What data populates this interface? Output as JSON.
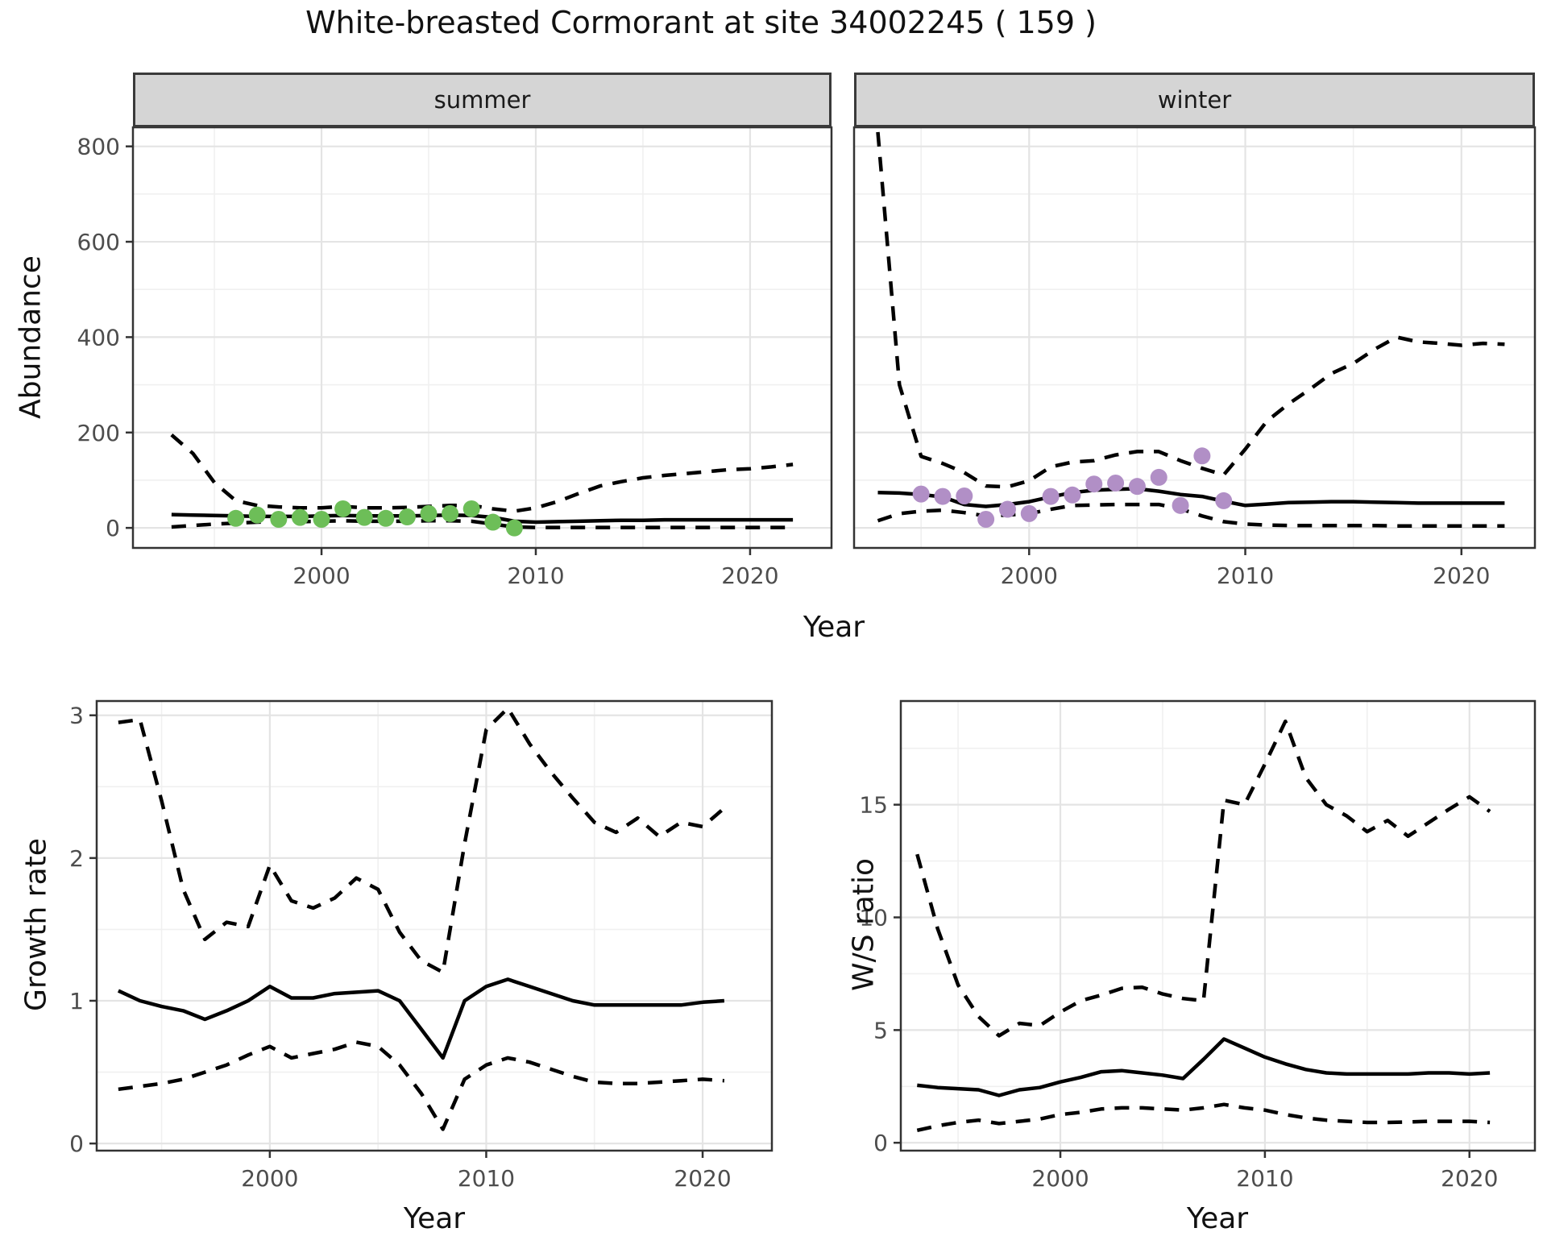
{
  "title": "White-breasted Cormorant at site 34002245 ( 159 )",
  "axis_labels": {
    "abundance": "Abundance",
    "year_top": "Year",
    "year_growth": "Year",
    "year_ws": "Year",
    "growth": "Growth rate",
    "ws": "W/S ratio"
  },
  "colors": {
    "summer_points": "#6dbe58",
    "winter_points": "#b18fc6",
    "line": "#000000",
    "strip_bg": "#d5d5d5",
    "panel_border": "#333333",
    "grid_major": "#e4e4e4",
    "grid_minor": "#f0f0f0",
    "tick_label": "#4d4d4d"
  },
  "chart_data": [
    {
      "key": "summer",
      "type": "line",
      "facet_label": "summer",
      "xlabel": "Year",
      "ylabel": "Abundance",
      "xlim": [
        1991.2,
        2023.8
      ],
      "ylim": [
        -42,
        840
      ],
      "xticks": [
        2000,
        2010,
        2020
      ],
      "yticks": [
        0,
        200,
        400,
        600,
        800
      ],
      "xminor": [
        1995,
        2005,
        2015
      ],
      "yminor": [
        100,
        300,
        500,
        700
      ],
      "grid": true,
      "legend": "none",
      "series": [
        {
          "name": "upper_ci",
          "style": "dashed",
          "x": [
            1993,
            1994,
            1995,
            1996,
            1997,
            1998,
            1999,
            2000,
            2001,
            2002,
            2003,
            2004,
            2005,
            2006,
            2007,
            2008,
            2009,
            2010,
            2011,
            2012,
            2013,
            2014,
            2015,
            2016,
            2017,
            2018,
            2019,
            2020,
            2021,
            2022
          ],
          "y": [
            195,
            156,
            95,
            57,
            47,
            44,
            42,
            42,
            45,
            42,
            42,
            43,
            45,
            47,
            47,
            40,
            35,
            42,
            55,
            72,
            88,
            97,
            105,
            110,
            114,
            118,
            122,
            124,
            128,
            133
          ]
        },
        {
          "name": "fit",
          "style": "solid",
          "x": [
            1993,
            1994,
            1995,
            1996,
            1997,
            1998,
            1999,
            2000,
            2001,
            2002,
            2003,
            2004,
            2005,
            2006,
            2007,
            2008,
            2009,
            2010,
            2011,
            2012,
            2013,
            2014,
            2015,
            2016,
            2017,
            2018,
            2019,
            2020,
            2021,
            2022
          ],
          "y": [
            28,
            27,
            26,
            25,
            24,
            24,
            24,
            25,
            26,
            25,
            25,
            25,
            26,
            27,
            26,
            22,
            14,
            12,
            13,
            14,
            15,
            16,
            16,
            17,
            17,
            17,
            17,
            17,
            17,
            17
          ]
        },
        {
          "name": "lower_ci",
          "style": "dashed",
          "x": [
            1993,
            1994,
            1995,
            1996,
            1997,
            1998,
            1999,
            2000,
            2001,
            2002,
            2003,
            2004,
            2005,
            2006,
            2007,
            2008,
            2009,
            2010,
            2011,
            2012,
            2013,
            2014,
            2015,
            2016,
            2017,
            2018,
            2019,
            2020,
            2021,
            2022
          ],
          "y": [
            2,
            5,
            8,
            10,
            12,
            13,
            13,
            14,
            15,
            14,
            14,
            14,
            15,
            15,
            14,
            8,
            2,
            1,
            1,
            1,
            1,
            1,
            1,
            1,
            1,
            1,
            1,
            1,
            1,
            1
          ]
        },
        {
          "name": "observed",
          "style": "points",
          "color": "#6dbe58",
          "x": [
            1996,
            1997,
            1998,
            1999,
            2000,
            2001,
            2002,
            2003,
            2004,
            2005,
            2006,
            2007,
            2008,
            2009
          ],
          "y": [
            20,
            27,
            18,
            22,
            18,
            40,
            22,
            20,
            23,
            30,
            30,
            40,
            12,
            0
          ]
        }
      ]
    },
    {
      "key": "winter",
      "type": "line",
      "facet_label": "winter",
      "xlabel": "Year",
      "ylabel": "Abundance",
      "xlim": [
        1991.9,
        2023.4
      ],
      "ylim": [
        -42,
        840
      ],
      "xticks": [
        2000,
        2010,
        2020
      ],
      "yticks": [
        0,
        200,
        400,
        600,
        800
      ],
      "xminor": [
        1995,
        2005,
        2015
      ],
      "yminor": [
        100,
        300,
        500,
        700
      ],
      "grid": true,
      "legend": "none",
      "series": [
        {
          "name": "upper_ci",
          "style": "dashed",
          "x": [
            1993,
            1994,
            1995,
            1996,
            1997,
            1998,
            1999,
            2000,
            2001,
            2002,
            2003,
            2004,
            2005,
            2006,
            2007,
            2008,
            2009,
            2010,
            2011,
            2012,
            2013,
            2014,
            2015,
            2016,
            2017,
            2018,
            2019,
            2020,
            2021,
            2022
          ],
          "y": [
            830,
            300,
            150,
            135,
            116,
            88,
            86,
            99,
            128,
            138,
            141,
            153,
            160,
            160,
            141,
            125,
            111,
            165,
            224,
            260,
            291,
            324,
            345,
            375,
            400,
            390,
            387,
            383,
            387,
            385
          ]
        },
        {
          "name": "fit",
          "style": "solid",
          "x": [
            1993,
            1994,
            1995,
            1996,
            1997,
            1998,
            1999,
            2000,
            2001,
            2002,
            2003,
            2004,
            2005,
            2006,
            2007,
            2008,
            2009,
            2010,
            2011,
            2012,
            2013,
            2014,
            2015,
            2016,
            2017,
            2018,
            2019,
            2020,
            2021,
            2022
          ],
          "y": [
            74,
            73,
            70,
            65,
            49,
            45,
            49,
            55,
            65,
            74,
            79,
            81,
            82,
            77,
            70,
            66,
            56,
            47,
            50,
            53,
            54,
            55,
            55,
            54,
            53,
            52,
            52,
            52,
            52,
            52
          ]
        },
        {
          "name": "lower_ci",
          "style": "dashed",
          "x": [
            1993,
            1994,
            1995,
            1996,
            1997,
            1998,
            1999,
            2000,
            2001,
            2002,
            2003,
            2004,
            2005,
            2006,
            2007,
            2008,
            2009,
            2010,
            2011,
            2012,
            2013,
            2014,
            2015,
            2016,
            2017,
            2018,
            2019,
            2020,
            2021,
            2022
          ],
          "y": [
            15,
            30,
            35,
            37,
            32,
            25,
            27,
            30,
            39,
            47,
            48,
            49,
            49,
            49,
            40,
            25,
            13,
            8,
            6,
            5,
            5,
            5,
            5,
            5,
            4,
            4,
            4,
            4,
            4,
            4
          ]
        },
        {
          "name": "observed",
          "style": "points",
          "color": "#b18fc6",
          "x": [
            1995,
            1996,
            1997,
            1998,
            1999,
            2000,
            2001,
            2002,
            2003,
            2004,
            2005,
            2006,
            2007,
            2008,
            2009
          ],
          "y": [
            71,
            66,
            67,
            18,
            39,
            30,
            66,
            69,
            92,
            94,
            87,
            106,
            47,
            151,
            57
          ]
        }
      ]
    },
    {
      "key": "growth",
      "type": "line",
      "facet_label": "",
      "xlabel": "Year",
      "ylabel": "Growth rate",
      "xlim": [
        1992.0,
        2023.2
      ],
      "ylim": [
        -0.05,
        3.1
      ],
      "xticks": [
        2000,
        2010,
        2020
      ],
      "yticks": [
        0,
        1,
        2,
        3
      ],
      "xminor": [
        1995,
        2005,
        2015
      ],
      "yminor": [
        0.5,
        1.5,
        2.5
      ],
      "grid": true,
      "legend": "none",
      "series": [
        {
          "name": "upper_ci",
          "style": "dashed",
          "x": [
            1993,
            1994,
            1995,
            1996,
            1997,
            1998,
            1999,
            2000,
            2001,
            2002,
            2003,
            2004,
            2005,
            2006,
            2007,
            2008,
            2009,
            2010,
            2011,
            2012,
            2013,
            2014,
            2015,
            2016,
            2017,
            2018,
            2019,
            2020,
            2021
          ],
          "y": [
            2.95,
            2.97,
            2.4,
            1.78,
            1.43,
            1.55,
            1.52,
            1.95,
            1.7,
            1.65,
            1.72,
            1.86,
            1.78,
            1.48,
            1.28,
            1.2,
            2.1,
            2.9,
            3.05,
            2.8,
            2.6,
            2.42,
            2.25,
            2.18,
            2.28,
            2.15,
            2.25,
            2.22,
            2.35
          ]
        },
        {
          "name": "fit",
          "style": "solid",
          "x": [
            1993,
            1994,
            1995,
            1996,
            1997,
            1998,
            1999,
            2000,
            2001,
            2002,
            2003,
            2004,
            2005,
            2006,
            2007,
            2008,
            2009,
            2010,
            2011,
            2012,
            2013,
            2014,
            2015,
            2016,
            2017,
            2018,
            2019,
            2020,
            2021
          ],
          "y": [
            1.07,
            1.0,
            0.96,
            0.93,
            0.87,
            0.93,
            1.0,
            1.1,
            1.02,
            1.02,
            1.05,
            1.06,
            1.07,
            1.0,
            0.8,
            0.6,
            1.0,
            1.1,
            1.15,
            1.1,
            1.05,
            1.0,
            0.97,
            0.97,
            0.97,
            0.97,
            0.97,
            0.99,
            1.0
          ]
        },
        {
          "name": "lower_ci",
          "style": "dashed",
          "x": [
            1993,
            1994,
            1995,
            1996,
            1997,
            1998,
            1999,
            2000,
            2001,
            2002,
            2003,
            2004,
            2005,
            2006,
            2007,
            2008,
            2009,
            2010,
            2011,
            2012,
            2013,
            2014,
            2015,
            2016,
            2017,
            2018,
            2019,
            2020,
            2021
          ],
          "y": [
            0.38,
            0.4,
            0.42,
            0.45,
            0.5,
            0.55,
            0.62,
            0.68,
            0.6,
            0.63,
            0.66,
            0.71,
            0.68,
            0.55,
            0.35,
            0.1,
            0.45,
            0.55,
            0.6,
            0.57,
            0.52,
            0.47,
            0.43,
            0.42,
            0.42,
            0.43,
            0.44,
            0.45,
            0.44
          ]
        }
      ]
    },
    {
      "key": "ws",
      "type": "line",
      "facet_label": "",
      "xlabel": "Year",
      "ylabel": "W/S ratio",
      "xlim": [
        1992.2,
        2023.2
      ],
      "ylim": [
        -0.35,
        19.6
      ],
      "xticks": [
        2000,
        2010,
        2020
      ],
      "yticks": [
        0,
        5,
        10,
        15
      ],
      "xminor": [
        1995,
        2005,
        2015
      ],
      "yminor": [
        2.5,
        7.5,
        12.5,
        17.5
      ],
      "grid": true,
      "legend": "none",
      "series": [
        {
          "name": "upper_ci",
          "style": "dashed",
          "x": [
            1993,
            1994,
            1995,
            1996,
            1997,
            1998,
            1999,
            2000,
            2001,
            2002,
            2003,
            2004,
            2005,
            2006,
            2007,
            2008,
            2009,
            2010,
            2011,
            2012,
            2013,
            2014,
            2015,
            2016,
            2017,
            2018,
            2019,
            2020,
            2021
          ],
          "y": [
            12.8,
            9.5,
            7.0,
            5.6,
            4.75,
            5.3,
            5.2,
            5.8,
            6.3,
            6.55,
            6.85,
            6.9,
            6.6,
            6.4,
            6.3,
            15.2,
            15.0,
            16.8,
            18.7,
            16.2,
            15.0,
            14.5,
            13.8,
            14.3,
            13.6,
            14.2,
            14.8,
            15.35,
            14.7
          ]
        },
        {
          "name": "fit",
          "style": "solid",
          "x": [
            1993,
            1994,
            1995,
            1996,
            1997,
            1998,
            1999,
            2000,
            2001,
            2002,
            2003,
            2004,
            2005,
            2006,
            2007,
            2008,
            2009,
            2010,
            2011,
            2012,
            2013,
            2014,
            2015,
            2016,
            2017,
            2018,
            2019,
            2020,
            2021
          ],
          "y": [
            2.55,
            2.45,
            2.4,
            2.35,
            2.1,
            2.35,
            2.45,
            2.7,
            2.9,
            3.15,
            3.2,
            3.1,
            3.0,
            2.85,
            3.7,
            4.6,
            4.2,
            3.8,
            3.5,
            3.25,
            3.1,
            3.05,
            3.05,
            3.05,
            3.05,
            3.1,
            3.1,
            3.05,
            3.1
          ]
        },
        {
          "name": "lower_ci",
          "style": "dashed",
          "x": [
            1993,
            1994,
            1995,
            1996,
            1997,
            1998,
            1999,
            2000,
            2001,
            2002,
            2003,
            2004,
            2005,
            2006,
            2007,
            2008,
            2009,
            2010,
            2011,
            2012,
            2013,
            2014,
            2015,
            2016,
            2017,
            2018,
            2019,
            2020,
            2021
          ],
          "y": [
            0.55,
            0.75,
            0.9,
            1.0,
            0.85,
            0.95,
            1.05,
            1.25,
            1.35,
            1.5,
            1.55,
            1.55,
            1.5,
            1.45,
            1.55,
            1.7,
            1.55,
            1.45,
            1.25,
            1.1,
            1.0,
            0.95,
            0.9,
            0.9,
            0.92,
            0.95,
            0.95,
            0.95,
            0.9
          ]
        }
      ]
    }
  ]
}
